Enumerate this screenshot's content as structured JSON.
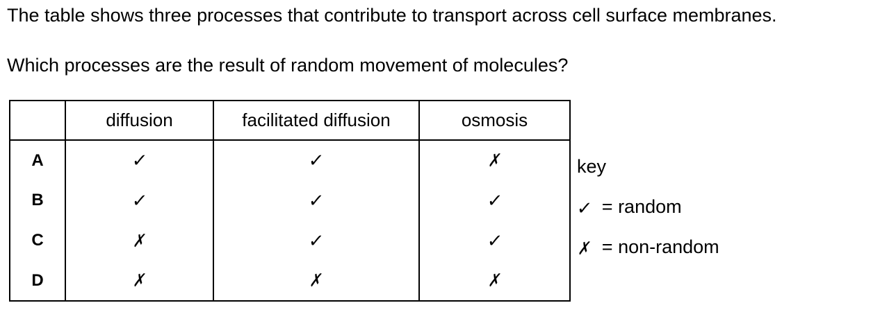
{
  "question": {
    "intro": "The table shows three processes that contribute to transport across cell surface membranes.",
    "prompt": "Which processes are the result of random movement of molecules?"
  },
  "table": {
    "headers": [
      "",
      "diffusion",
      "facilitated diffusion",
      "osmosis"
    ],
    "rows": [
      {
        "letter": "A",
        "values": [
          "✓",
          "✓",
          "✗"
        ]
      },
      {
        "letter": "B",
        "values": [
          "✓",
          "✓",
          "✓"
        ]
      },
      {
        "letter": "C",
        "values": [
          "✗",
          "✓",
          "✓"
        ]
      },
      {
        "letter": "D",
        "values": [
          "✗",
          "✗",
          "✗"
        ]
      }
    ]
  },
  "key": {
    "title": "key",
    "tick_symbol": "✓",
    "tick_label": "= random",
    "cross_symbol": "✗",
    "cross_label": "= non-random"
  }
}
